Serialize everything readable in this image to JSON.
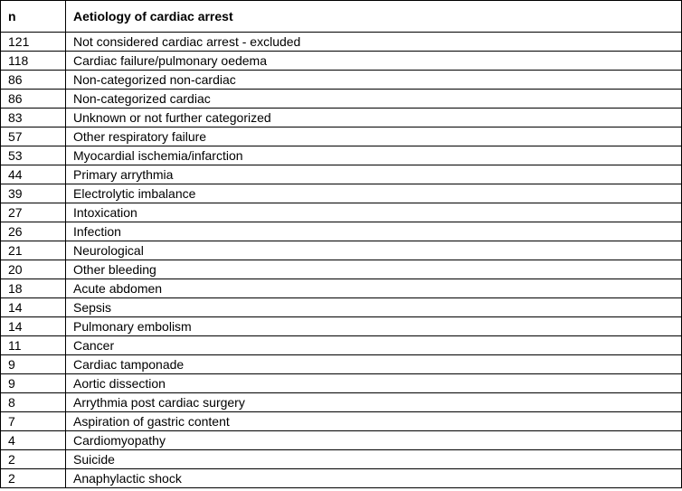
{
  "table": {
    "header": [
      "n",
      "Aetiology of cardiac arrest"
    ],
    "rows": [
      [
        121,
        "Not considered cardiac arrest - excluded"
      ],
      [
        118,
        "Cardiac failure/pulmonary oedema"
      ],
      [
        86,
        "Non-categorized non-cardiac"
      ],
      [
        86,
        "Non-categorized cardiac"
      ],
      [
        83,
        "Unknown or not further categorized"
      ],
      [
        57,
        "Other respiratory failure"
      ],
      [
        53,
        "Myocardial ischemia/infarction"
      ],
      [
        44,
        "Primary arrythmia"
      ],
      [
        39,
        "Electrolytic imbalance"
      ],
      [
        27,
        "Intoxication"
      ],
      [
        26,
        "Infection"
      ],
      [
        21,
        "Neurological"
      ],
      [
        20,
        "Other bleeding"
      ],
      [
        18,
        "Acute abdomen"
      ],
      [
        14,
        "Sepsis"
      ],
      [
        14,
        "Pulmonary embolism"
      ],
      [
        11,
        "Cancer"
      ],
      [
        9,
        "Cardiac tamponade"
      ],
      [
        9,
        "Aortic dissection"
      ],
      [
        8,
        "Arrythmia post cardiac surgery"
      ],
      [
        7,
        "Aspiration of gastric content"
      ],
      [
        4,
        "Cardiomyopathy"
      ],
      [
        2,
        "Suicide"
      ],
      [
        2,
        "Anaphylactic shock"
      ]
    ]
  }
}
